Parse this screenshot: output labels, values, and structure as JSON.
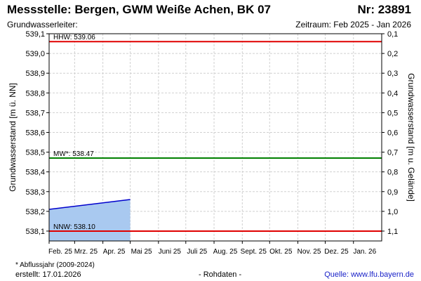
{
  "header": {
    "title": "Messstelle: Bergen, GWM Weiße Achen, BK 07",
    "station_nr": "Nr: 23891",
    "aquifer_label": "Grundwasserleiter:",
    "period": "Zeitraum: Feb 2025 - Jan 2026"
  },
  "footer": {
    "footnote": "* Abflussjahr (2009-2024)",
    "created": "erstellt:  17.01.2026",
    "rawdata": "- Rohdaten -",
    "source": "Quelle: www.lfu.bayern.de"
  },
  "colors": {
    "threshold_red": "#e00000",
    "mean_green": "#008000",
    "series_line": "#0000cc",
    "series_fill": "#a9c9f0",
    "grid": "#d0d0d0"
  },
  "chart_data": {
    "type": "area",
    "ylabel": "Grundwasserstand [m ü. NN]",
    "y2label": "Grundwasserstand [m u. Gelände]",
    "ylim": [
      538.05,
      539.1
    ],
    "yticks": [
      538.1,
      538.2,
      538.3,
      538.4,
      538.5,
      538.6,
      538.7,
      538.8,
      538.9,
      539.0,
      539.1
    ],
    "ytick_labels": [
      "538,1",
      "538,2",
      "538,3",
      "538,4",
      "538,5",
      "538,6",
      "538,7",
      "538,8",
      "538,9",
      "539,0",
      "539,1"
    ],
    "y2ticks": [
      0.1,
      0.2,
      0.3,
      0.4,
      0.5,
      0.6,
      0.7,
      0.8,
      0.9,
      1.0,
      1.1
    ],
    "y2tick_labels": [
      "0,1",
      "0,2",
      "0,3",
      "0,4",
      "0,5",
      "0,6",
      "0,7",
      "0,8",
      "0,9",
      "1,0",
      "1,1"
    ],
    "y2_reference": 539.2,
    "xlim": [
      "2025-02-01",
      "2026-02-01"
    ],
    "xticks": [
      "2025-02-01",
      "2025-03-01",
      "2025-04-01",
      "2025-05-01",
      "2025-06-01",
      "2025-07-01",
      "2025-08-01",
      "2025-09-01",
      "2025-10-01",
      "2025-11-01",
      "2025-12-01",
      "2026-01-01"
    ],
    "xtick_labels": [
      "Feb. 25",
      "Mrz. 25",
      "Apr. 25",
      "Mai 25",
      "Juni 25",
      "Juli 25",
      "Aug. 25",
      "Sept. 25",
      "Okt. 25",
      "Nov. 25",
      "Dez. 25",
      "Jan. 26"
    ],
    "grid": true,
    "series": [
      {
        "dates": [
          "2025-02-01",
          "2025-05-01"
        ],
        "values": [
          538.21,
          538.26
        ]
      }
    ],
    "thresholds": [
      {
        "label": "HHW: 539.06",
        "value": 539.06,
        "color": "#e00000"
      },
      {
        "label": "MW*: 538.47",
        "value": 538.47,
        "color": "#008000"
      },
      {
        "label": "NNW: 538.10",
        "value": 538.1,
        "color": "#e00000"
      }
    ]
  }
}
